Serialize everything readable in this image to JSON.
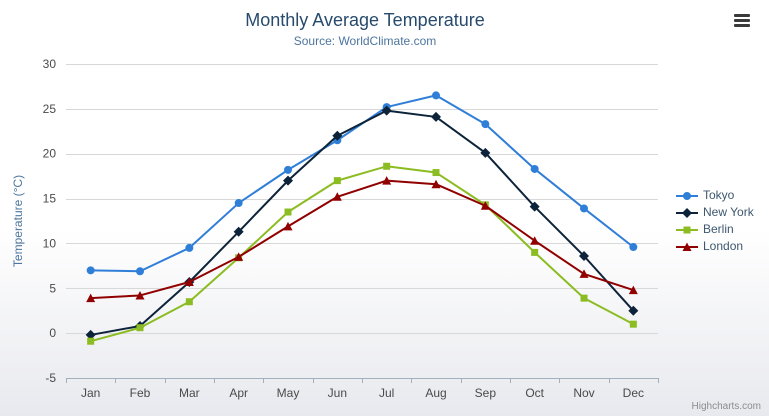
{
  "chart_data": {
    "type": "line",
    "title": "Monthly Average Temperature",
    "subtitle": "Source: WorldClimate.com",
    "xlabel": "",
    "ylabel": "Temperature (°C)",
    "ylim": [
      -5,
      30
    ],
    "y_tick_step": 5,
    "grid": true,
    "legend_position": "right",
    "categories": [
      "Jan",
      "Feb",
      "Mar",
      "Apr",
      "May",
      "Jun",
      "Jul",
      "Aug",
      "Sep",
      "Oct",
      "Nov",
      "Dec"
    ],
    "series": [
      {
        "name": "Tokyo",
        "color": "#2f7ed8",
        "marker": "circle",
        "values": [
          7.0,
          6.9,
          9.5,
          14.5,
          18.2,
          21.5,
          25.2,
          26.5,
          23.3,
          18.3,
          13.9,
          9.6
        ]
      },
      {
        "name": "New York",
        "color": "#0d233a",
        "marker": "diamond",
        "values": [
          -0.2,
          0.8,
          5.7,
          11.3,
          17.0,
          22.0,
          24.8,
          24.1,
          20.1,
          14.1,
          8.6,
          2.5
        ]
      },
      {
        "name": "Berlin",
        "color": "#8bbc21",
        "marker": "square",
        "values": [
          -0.9,
          0.6,
          3.5,
          8.4,
          13.5,
          17.0,
          18.6,
          17.9,
          14.3,
          9.0,
          3.9,
          1.0
        ]
      },
      {
        "name": "London",
        "color": "#910000",
        "marker": "triangle",
        "values": [
          3.9,
          4.2,
          5.7,
          8.5,
          11.9,
          15.2,
          17.0,
          16.6,
          14.2,
          10.3,
          6.6,
          4.8
        ]
      }
    ]
  },
  "icons": {
    "export_menu": "hamburger"
  },
  "credits": "Highcharts.com"
}
